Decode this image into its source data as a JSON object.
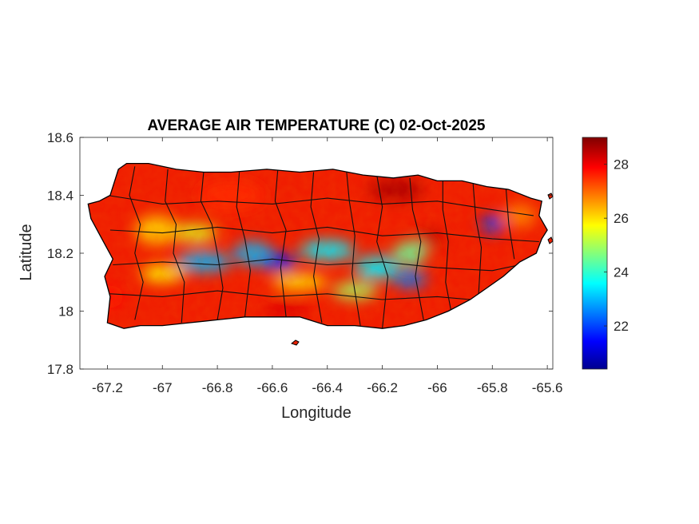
{
  "chart_data": {
    "type": "heatmap",
    "title": "AVERAGE AIR TEMPERATURE (C) 02-Oct-2025",
    "xlabel": "Longitude",
    "ylabel": "Latitude",
    "xlim": [
      -67.3,
      -65.58
    ],
    "ylim": [
      17.8,
      18.6
    ],
    "x_ticks": [
      {
        "value": -67.2,
        "label": "-67.2"
      },
      {
        "value": -67.0,
        "label": "-67"
      },
      {
        "value": -66.8,
        "label": "-66.8"
      },
      {
        "value": -66.6,
        "label": "-66.6"
      },
      {
        "value": -66.4,
        "label": "-66.4"
      },
      {
        "value": -66.2,
        "label": "-66.2"
      },
      {
        "value": -66.0,
        "label": "-66"
      },
      {
        "value": -65.8,
        "label": "-65.8"
      },
      {
        "value": -65.6,
        "label": "-65.6"
      }
    ],
    "y_ticks": [
      {
        "value": 17.8,
        "label": "17.8"
      },
      {
        "value": 18.0,
        "label": "18"
      },
      {
        "value": 18.2,
        "label": "18.2"
      },
      {
        "value": 18.4,
        "label": "18.4"
      },
      {
        "value": 18.6,
        "label": "18.6"
      }
    ],
    "colorbar": {
      "colormap": "jet",
      "range": [
        20.4,
        29.0
      ],
      "ticks": [
        {
          "value": 22,
          "label": "22"
        },
        {
          "value": 24,
          "label": "24"
        },
        {
          "value": 26,
          "label": "26"
        },
        {
          "value": 28,
          "label": "28"
        }
      ]
    },
    "temperature_regions": [
      {
        "lon": -66.85,
        "lat": 18.17,
        "rx": 0.1,
        "ry": 0.035,
        "value": 23.0
      },
      {
        "lon": -66.58,
        "lat": 18.17,
        "rx": 0.07,
        "ry": 0.03,
        "value": 21.5
      },
      {
        "lon": -66.67,
        "lat": 18.2,
        "rx": 0.07,
        "ry": 0.04,
        "value": 23.0
      },
      {
        "lon": -66.4,
        "lat": 18.21,
        "rx": 0.1,
        "ry": 0.035,
        "value": 23.5
      },
      {
        "lon": -66.22,
        "lat": 18.15,
        "rx": 0.08,
        "ry": 0.04,
        "value": 23.5
      },
      {
        "lon": -66.1,
        "lat": 18.11,
        "rx": 0.06,
        "ry": 0.03,
        "value": 22.5
      },
      {
        "lon": -65.8,
        "lat": 18.3,
        "rx": 0.04,
        "ry": 0.03,
        "value": 22.0
      },
      {
        "lon": -66.1,
        "lat": 18.2,
        "rx": 0.06,
        "ry": 0.04,
        "value": 24.5
      },
      {
        "lon": -67.02,
        "lat": 18.28,
        "rx": 0.08,
        "ry": 0.05,
        "value": 26.2
      },
      {
        "lon": -66.88,
        "lat": 18.27,
        "rx": 0.08,
        "ry": 0.03,
        "value": 25.5
      },
      {
        "lon": -66.3,
        "lat": 18.07,
        "rx": 0.08,
        "ry": 0.03,
        "value": 25.0
      },
      {
        "lon": -66.5,
        "lat": 18.1,
        "rx": 0.1,
        "ry": 0.025,
        "value": 25.8
      },
      {
        "lon": -67.0,
        "lat": 18.13,
        "rx": 0.08,
        "ry": 0.03,
        "value": 25.8
      },
      {
        "lon": -65.7,
        "lat": 18.33,
        "rx": 0.06,
        "ry": 0.04,
        "value": 26.8
      },
      {
        "lon": -66.15,
        "lat": 18.42,
        "rx": 0.1,
        "ry": 0.04,
        "value": 28.6
      },
      {
        "lon": -66.03,
        "lat": 18.25,
        "rx": 0.05,
        "ry": 0.03,
        "value": 28.5
      },
      {
        "lon": -66.55,
        "lat": 18.0,
        "rx": 0.08,
        "ry": 0.03,
        "value": 28.2
      },
      {
        "lon": -66.75,
        "lat": 18.4,
        "rx": 0.12,
        "ry": 0.05,
        "value": 27.6
      },
      {
        "lon": -67.2,
        "lat": 18.05,
        "rx": 0.06,
        "ry": 0.04,
        "value": 27.8
      }
    ]
  }
}
